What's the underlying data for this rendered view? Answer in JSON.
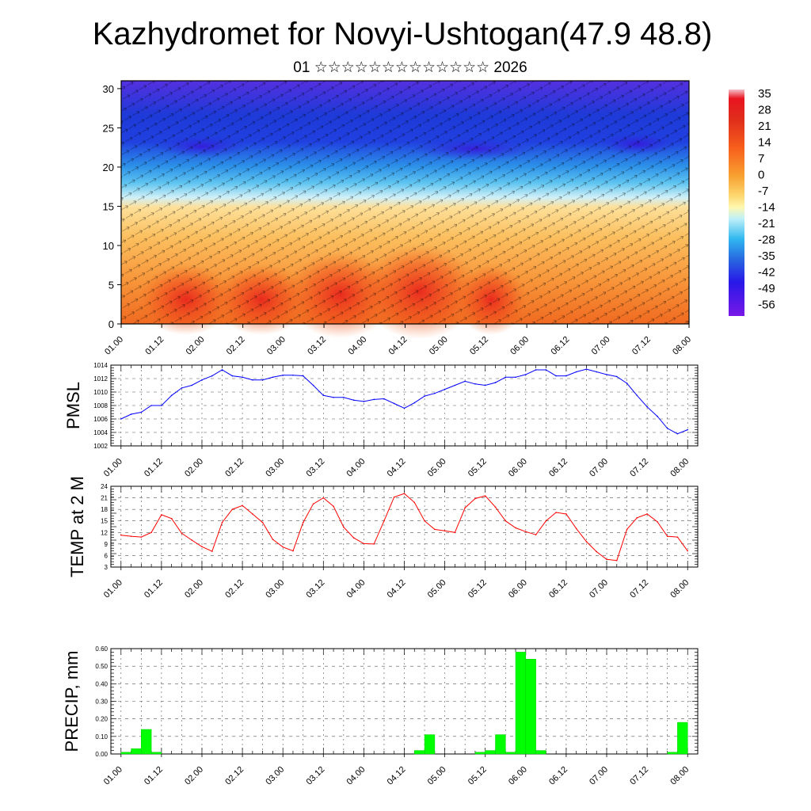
{
  "title": "Kazhydromet for Novyi-Ushtogan(47.9 48.8)",
  "subtitle": "01 ☆☆☆☆☆☆☆☆☆☆☆☆☆ 2026",
  "colors": {
    "pmsl_line": "#0000ff",
    "temp_line": "#ff0000",
    "precip_bar": "#00ff00",
    "precip_outline": "#00cc00",
    "wind_vectors": "#000000"
  },
  "chart_data": [
    {
      "name": "vertical-cross-section",
      "type": "heatmap",
      "x_tick_labels": [
        "01.00",
        "01.12",
        "02.00",
        "02.12",
        "03.00",
        "03.12",
        "04.00",
        "04.12",
        "05.00",
        "05.12",
        "06.00",
        "06.12",
        "07.00",
        "07.12",
        "08.00"
      ],
      "xlim": [
        0,
        168
      ],
      "ylim": [
        0,
        31
      ],
      "y_ticks": [
        0,
        5,
        10,
        15,
        20,
        25,
        30
      ],
      "y_tick_labels": [
        "0",
        "5",
        "10",
        "15",
        "20",
        "25",
        "30"
      ],
      "colorbar": {
        "labels": [
          "35",
          "28",
          "21",
          "14",
          "7",
          "0",
          "-7",
          "-14",
          "-21",
          "-28",
          "-35",
          "-42",
          "-49",
          "-56"
        ],
        "values": [
          35,
          28,
          21,
          14,
          7,
          0,
          -7,
          -14,
          -21,
          -28,
          -35,
          -42,
          -49,
          -56
        ]
      },
      "overlay": "wind vectors"
    },
    {
      "name": "pmsl",
      "type": "line",
      "ylabel": "PMSL",
      "ylim": [
        1002,
        1014
      ],
      "y_ticks": [
        1002,
        1004,
        1006,
        1008,
        1010,
        1012,
        1014
      ],
      "y_tick_labels": [
        "1002",
        "1004",
        "1006",
        "1008",
        "1010",
        "1012",
        "1014"
      ],
      "x_tick_labels": [
        "01.00",
        "01.12",
        "02.00",
        "02.12",
        "03.00",
        "03.12",
        "04.00",
        "04.12",
        "05.00",
        "05.12",
        "06.00",
        "06.12",
        "07.00",
        "07.12",
        "08.00"
      ],
      "xlim": [
        -3,
        171
      ],
      "x": [
        0,
        3,
        6,
        9,
        12,
        15,
        18,
        21,
        24,
        27,
        30,
        33,
        36,
        39,
        42,
        45,
        48,
        51,
        54,
        57,
        60,
        63,
        66,
        69,
        72,
        75,
        78,
        81,
        84,
        87,
        90,
        93,
        96,
        99,
        102,
        105,
        108,
        111,
        114,
        117,
        120,
        123,
        126,
        129,
        132,
        135,
        138,
        141,
        144,
        147,
        150,
        153,
        156,
        159,
        162,
        165,
        168
      ],
      "values": [
        1006.0,
        1006.7,
        1007.0,
        1008.0,
        1008.0,
        1009.5,
        1010.6,
        1011.0,
        1011.8,
        1012.4,
        1013.3,
        1012.4,
        1012.2,
        1011.8,
        1011.8,
        1012.2,
        1012.5,
        1012.5,
        1012.4,
        1011.0,
        1009.5,
        1009.2,
        1009.2,
        1008.8,
        1008.6,
        1008.9,
        1009.0,
        1008.3,
        1007.6,
        1008.4,
        1009.4,
        1009.8,
        1010.4,
        1011.0,
        1011.6,
        1011.2,
        1011.0,
        1011.4,
        1012.2,
        1012.2,
        1012.6,
        1013.3,
        1013.3,
        1012.4,
        1012.4,
        1013.0,
        1013.4,
        1013.0,
        1012.6,
        1012.3,
        1011.3,
        1009.5,
        1007.8,
        1006.4,
        1004.6,
        1003.8,
        1004.4
      ]
    },
    {
      "name": "temp-2m",
      "type": "line",
      "ylabel": "TEMP at 2 M",
      "ylim": [
        3,
        24
      ],
      "y_ticks": [
        3,
        6,
        9,
        12,
        15,
        18,
        21,
        24
      ],
      "y_tick_labels": [
        "3",
        "6",
        "9",
        "12",
        "15",
        "18",
        "21",
        "24"
      ],
      "x_tick_labels": [
        "01.00",
        "01.12",
        "02.00",
        "02.12",
        "03.00",
        "03.12",
        "04.00",
        "04.12",
        "05.00",
        "05.12",
        "06.00",
        "06.12",
        "07.00",
        "07.12",
        "08.00"
      ],
      "xlim": [
        -3,
        171
      ],
      "x": [
        0,
        3,
        6,
        9,
        12,
        15,
        18,
        21,
        24,
        27,
        30,
        33,
        36,
        39,
        42,
        45,
        48,
        51,
        54,
        57,
        60,
        63,
        66,
        69,
        72,
        75,
        78,
        81,
        84,
        87,
        90,
        93,
        96,
        99,
        102,
        105,
        108,
        111,
        114,
        117,
        120,
        123,
        126,
        129,
        132,
        135,
        138,
        141,
        144,
        147,
        150,
        153,
        156,
        159,
        162,
        165,
        168
      ],
      "values": [
        11.3,
        11.0,
        10.8,
        12.0,
        16.6,
        15.6,
        11.8,
        10.0,
        8.3,
        7.1,
        14.6,
        18.0,
        19.0,
        16.8,
        14.6,
        10.2,
        8.2,
        7.2,
        14.6,
        19.4,
        21.0,
        18.8,
        13.4,
        10.6,
        9.1,
        9.0,
        15.0,
        21.2,
        22.1,
        19.8,
        15.0,
        12.8,
        12.4,
        12.0,
        18.4,
        20.8,
        21.5,
        18.6,
        15.0,
        13.2,
        12.2,
        11.4,
        15.0,
        17.2,
        16.8,
        13.0,
        9.6,
        7.0,
        5.0,
        4.7,
        12.8,
        15.8,
        16.8,
        14.8,
        11.0,
        10.8,
        7.2
      ]
    },
    {
      "name": "precip",
      "type": "bar",
      "ylabel": "PRECIP, mm",
      "ylim": [
        0,
        0.6
      ],
      "y_ticks": [
        0,
        0.1,
        0.2,
        0.3,
        0.4,
        0.5,
        0.6
      ],
      "y_tick_labels": [
        "0.00",
        "0.10",
        "0.20",
        "0.30",
        "0.40",
        "0.50",
        "0.60"
      ],
      "x_tick_labels": [
        "01.00",
        "01.12",
        "02.00",
        "02.12",
        "03.00",
        "03.12",
        "04.00",
        "04.12",
        "05.00",
        "05.12",
        "06.00",
        "06.12",
        "07.00",
        "07.12",
        "08.00"
      ],
      "xlim": [
        -3,
        171
      ],
      "x": [
        3,
        6,
        9,
        12,
        90,
        93,
        108,
        111,
        114,
        117,
        120,
        123,
        126,
        165,
        168
      ],
      "values": [
        0.01,
        0.03,
        0.14,
        0.01,
        0.02,
        0.11,
        0.01,
        0.02,
        0.11,
        0.01,
        0.58,
        0.54,
        0.02,
        0.01,
        0.18
      ]
    }
  ]
}
